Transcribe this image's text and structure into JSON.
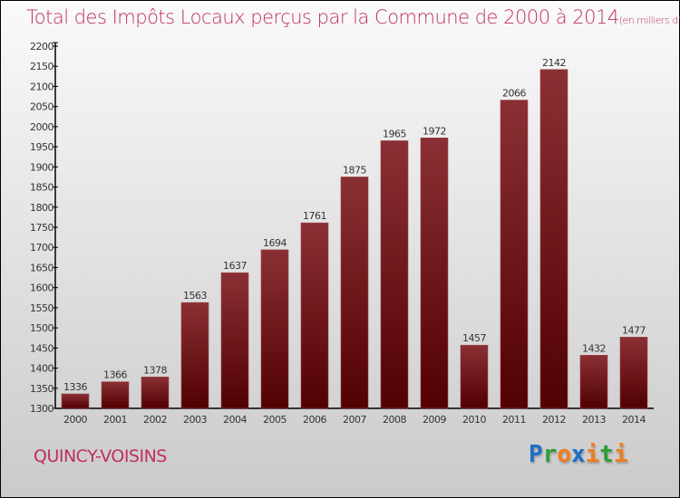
{
  "title": "Total des Impôts Locaux perçus par la Commune de 2000 à 2014",
  "subtitle": "(en milliers d'€)",
  "commune": "QUINCY-VOISINS",
  "logo": {
    "letters": [
      "P",
      "r",
      "o",
      "x",
      "i",
      "t",
      "i"
    ],
    "colors": [
      "#1a6fc4",
      "#2e9e3a",
      "#f07d1a",
      "#1a6fc4",
      "#f07d1a",
      "#2e9e3a",
      "#f07d1a"
    ]
  },
  "chart_data": {
    "type": "bar",
    "title": "Total des Impôts Locaux perçus par la Commune de 2000 à 2014",
    "xlabel": "",
    "ylabel": "",
    "categories": [
      "2000",
      "2001",
      "2002",
      "2003",
      "2004",
      "2005",
      "2006",
      "2007",
      "2008",
      "2009",
      "2010",
      "2011",
      "2012",
      "2013",
      "2014"
    ],
    "values": [
      1336,
      1366,
      1378,
      1563,
      1637,
      1694,
      1761,
      1875,
      1965,
      1972,
      1457,
      2066,
      2142,
      1432,
      1477
    ],
    "ylim": [
      1300,
      2200
    ],
    "yticks": [
      1300,
      1350,
      1400,
      1450,
      1500,
      1550,
      1600,
      1650,
      1700,
      1750,
      1800,
      1850,
      1900,
      1950,
      2000,
      2050,
      2100,
      2150,
      2200
    ],
    "bar_color": "#6e1418",
    "grid": false
  }
}
